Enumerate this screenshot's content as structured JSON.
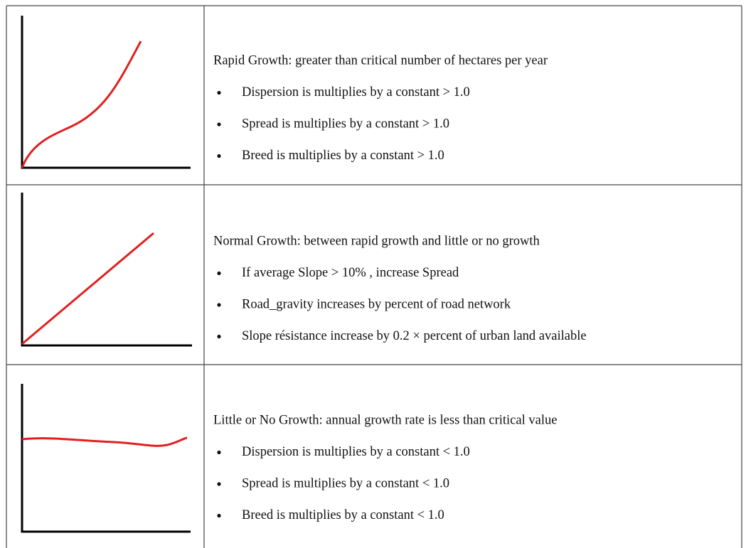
{
  "rows": [
    {
      "heading": "Rapid Growth: greater than critical number of hectares per year",
      "bullets": [
        "Dispersion is multiplies by a constant > 1.0",
        "Spread is multiplies by a constant > 1.0",
        "Breed is multiplies by a constant > 1.0"
      ]
    },
    {
      "heading": "Normal Growth: between rapid growth and little or no growth",
      "bullets": [
        "If average Slope > 10% , increase Spread",
        "Road_gravity increases by percent of road network",
        "Slope résistance increase by 0.2 × percent of urban land available"
      ]
    },
    {
      "heading": "Little or No Growth: annual growth rate is less than critical value",
      "bullets": [
        "Dispersion is multiplies by a constant < 1.0",
        "Spread is multiplies by a constant < 1.0",
        "Breed is multiplies by a constant < 1.0"
      ]
    }
  ]
}
